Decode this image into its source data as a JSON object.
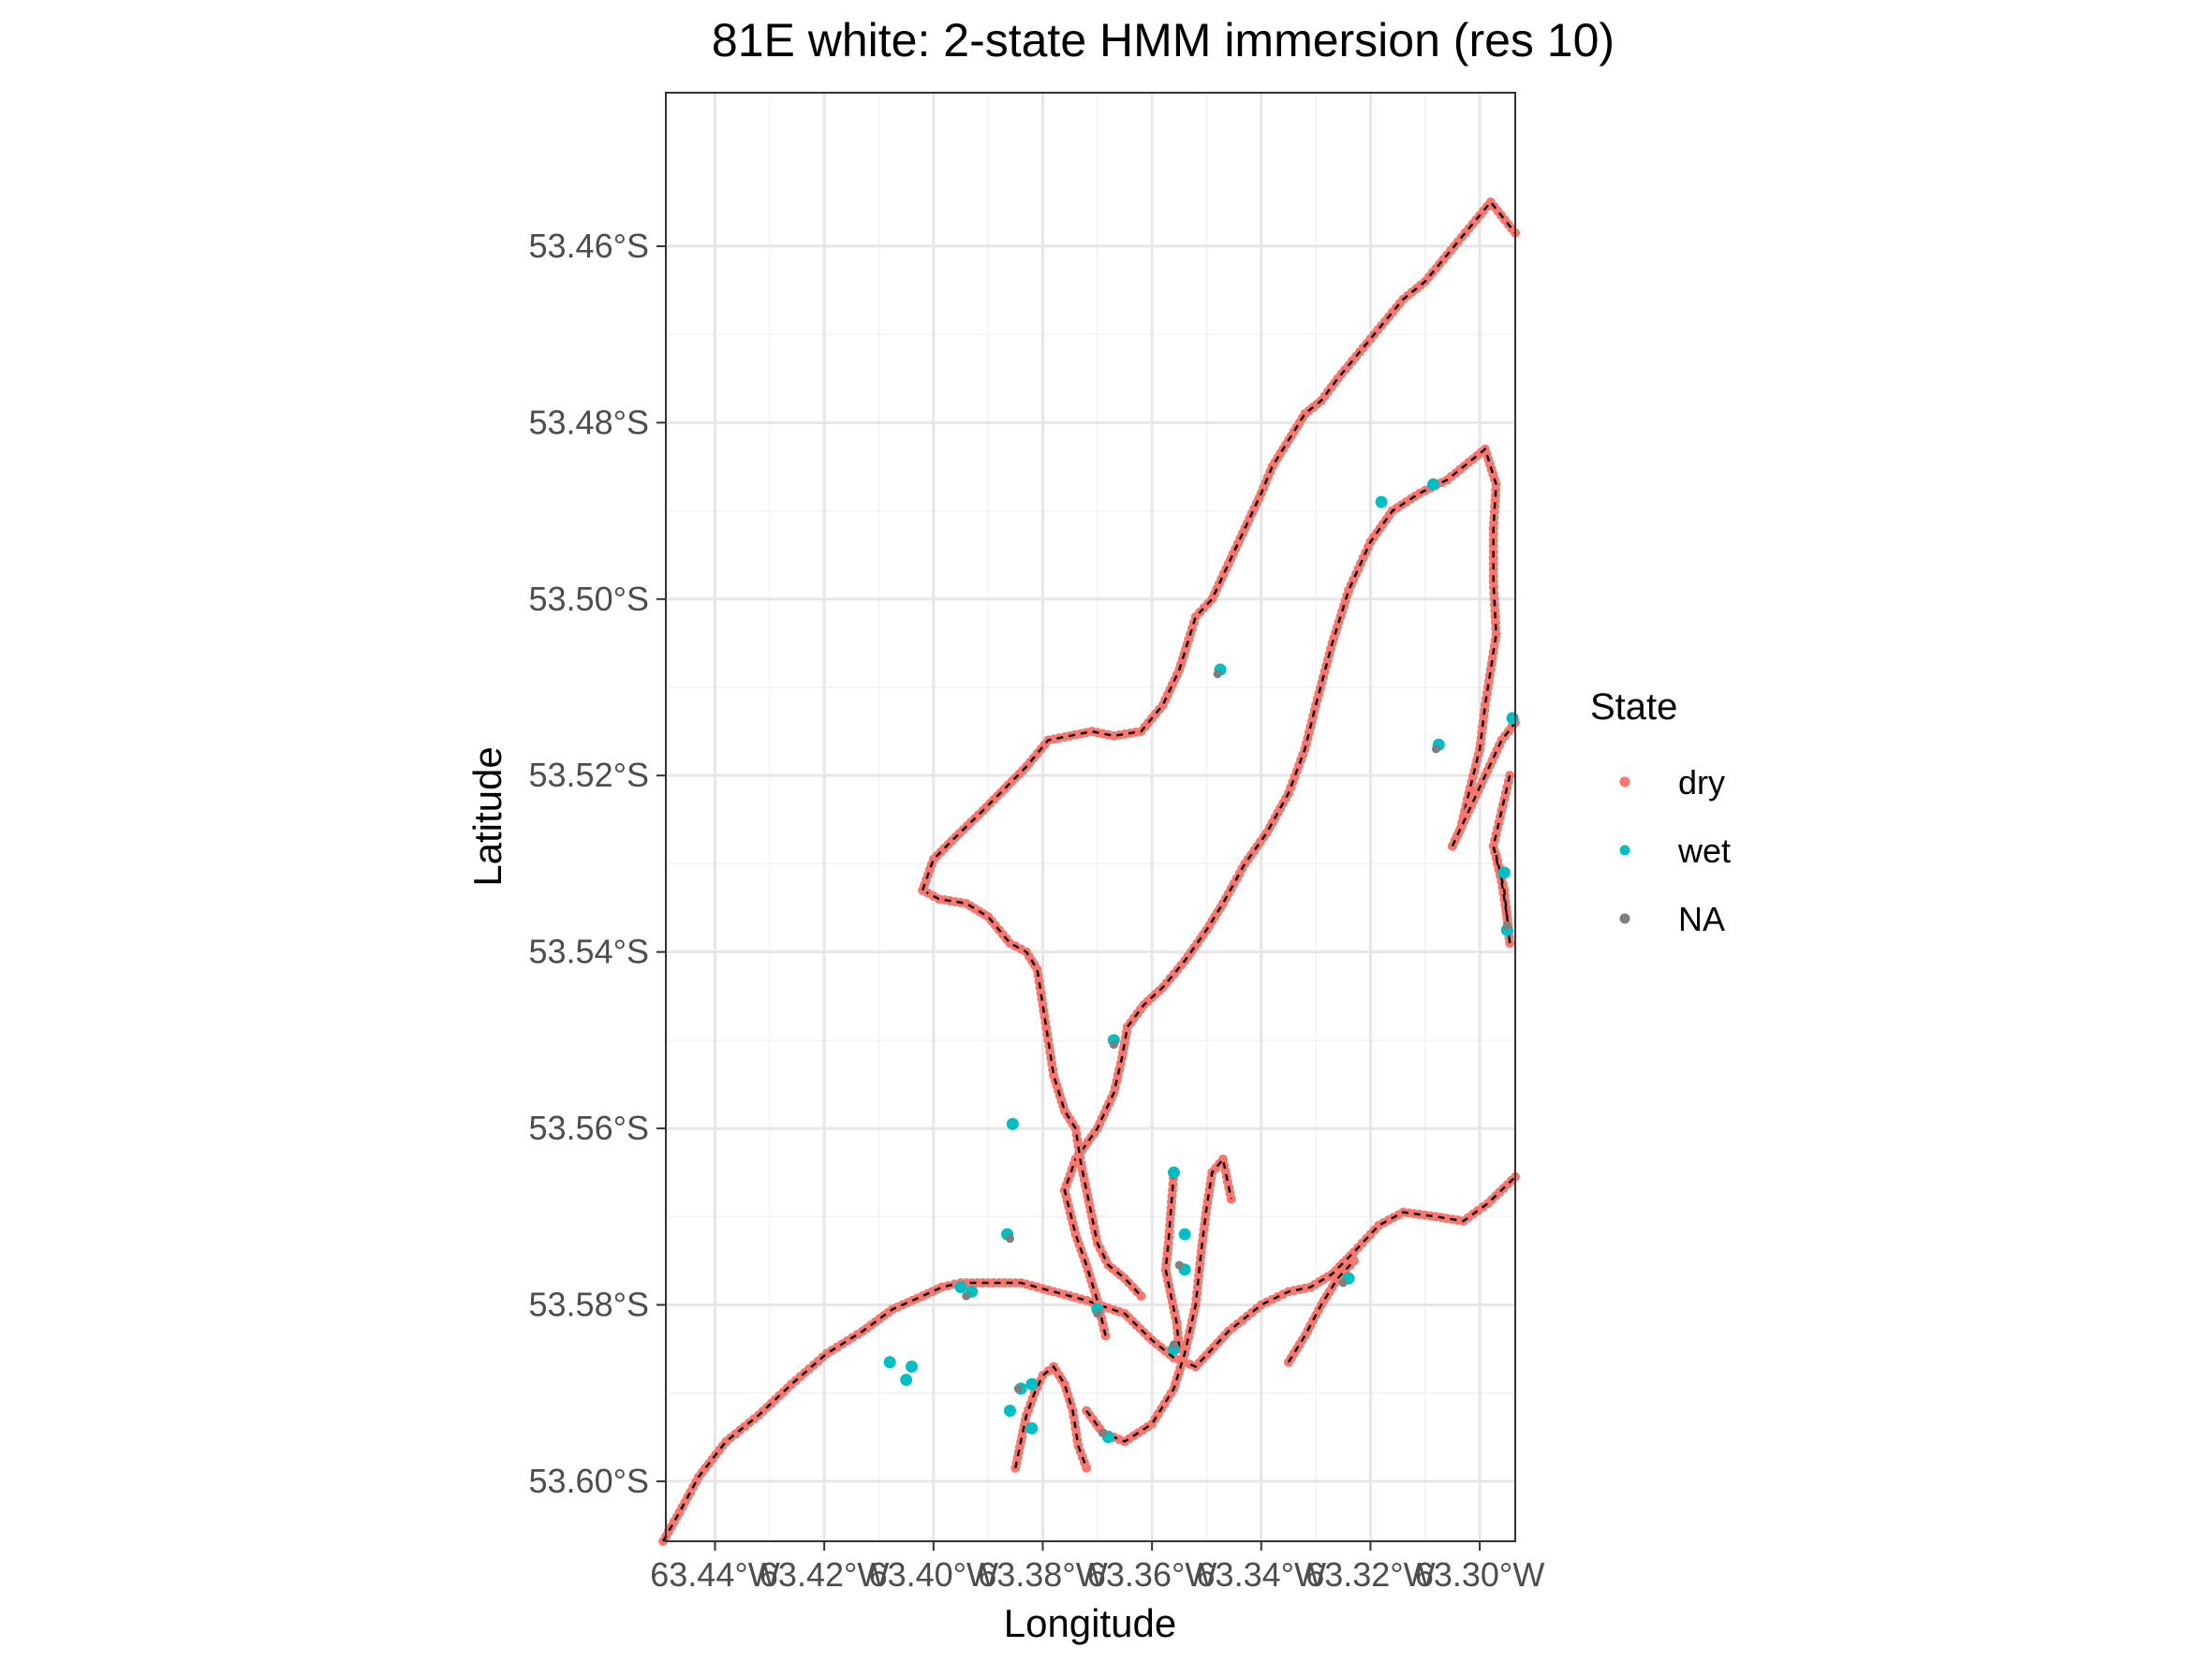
{
  "chart_data": {
    "type": "scatter",
    "title": "81E white: 2-state HMM immersion (res 10)",
    "xlabel": "Longitude",
    "ylabel": "Latitude",
    "xlim": [
      -63.449,
      -63.2935
    ],
    "ylim": [
      -53.6068,
      -53.4426
    ],
    "x_ticks": [
      -63.44,
      -63.42,
      -63.4,
      -63.38,
      -63.36,
      -63.34,
      -63.32,
      -63.3
    ],
    "x_tick_labels": [
      "63.44°W",
      "63.42°W",
      "63.40°W",
      "63.38°W",
      "63.36°W",
      "63.34°W",
      "63.32°W",
      "63.30°W"
    ],
    "y_ticks": [
      -53.46,
      -53.48,
      -53.5,
      -53.52,
      -53.54,
      -53.56,
      -53.58,
      -53.6
    ],
    "y_tick_labels": [
      "53.46°S",
      "53.48°S",
      "53.50°S",
      "53.52°S",
      "53.54°S",
      "53.56°S",
      "53.58°S",
      "53.60°S"
    ],
    "grid": true,
    "legend": {
      "title": "State",
      "position": "right",
      "entries": [
        {
          "label": "dry",
          "color": "#F8766D"
        },
        {
          "label": "wet",
          "color": "#00BFC4"
        },
        {
          "label": "NA",
          "color": "#7F7F7F"
        }
      ]
    },
    "track_line": {
      "style": "dashed",
      "color": "#111111"
    },
    "tracks": [
      {
        "state": "dry",
        "points": [
          [
            -63.4495,
            -53.6068
          ],
          [
            -63.4465,
            -53.6035
          ],
          [
            -63.443,
            -53.5995
          ],
          [
            -63.438,
            -53.5955
          ],
          [
            -63.432,
            -53.5925
          ],
          [
            -63.426,
            -53.589
          ],
          [
            -63.4195,
            -53.5855
          ],
          [
            -63.413,
            -53.583
          ],
          [
            -63.4075,
            -53.5805
          ],
          [
            -63.402,
            -53.579
          ],
          [
            -63.3985,
            -53.578
          ],
          [
            -63.395,
            -53.5775
          ],
          [
            -63.39,
            -53.5775
          ],
          [
            -63.384,
            -53.5775
          ],
          [
            -63.378,
            -53.5785
          ],
          [
            -63.372,
            -53.5795
          ],
          [
            -63.365,
            -53.581
          ],
          [
            -63.36,
            -53.584
          ],
          [
            -63.356,
            -53.586
          ],
          [
            -63.352,
            -53.587
          ],
          [
            -63.346,
            -53.583
          ],
          [
            -63.34,
            -53.58
          ],
          [
            -63.335,
            -53.5785
          ],
          [
            -63.331,
            -53.578
          ],
          [
            -63.327,
            -53.5765
          ],
          [
            -63.323,
            -53.574
          ],
          [
            -63.3185,
            -53.571
          ],
          [
            -63.314,
            -53.5695
          ],
          [
            -63.308,
            -53.57
          ],
          [
            -63.303,
            -53.5705
          ],
          [
            -63.2985,
            -53.5685
          ],
          [
            -63.2935,
            -53.5655
          ]
        ]
      },
      {
        "state": "dry",
        "points": [
          [
            -63.3685,
            -53.5835
          ],
          [
            -63.37,
            -53.5795
          ],
          [
            -63.372,
            -53.5755
          ],
          [
            -63.374,
            -53.572
          ],
          [
            -63.376,
            -53.567
          ],
          [
            -63.374,
            -53.5635
          ],
          [
            -63.37,
            -53.56
          ],
          [
            -63.367,
            -53.556
          ],
          [
            -63.3655,
            -53.552
          ],
          [
            -63.3645,
            -53.5485
          ],
          [
            -63.3615,
            -53.546
          ],
          [
            -63.358,
            -53.544
          ],
          [
            -63.354,
            -53.541
          ],
          [
            -63.35,
            -53.5375
          ],
          [
            -63.347,
            -53.5345
          ],
          [
            -63.343,
            -53.53
          ],
          [
            -63.339,
            -53.5265
          ],
          [
            -63.335,
            -53.522
          ],
          [
            -63.332,
            -53.517
          ],
          [
            -63.33,
            -53.512
          ],
          [
            -63.327,
            -53.505
          ],
          [
            -63.324,
            -53.499
          ],
          [
            -63.32,
            -53.4935
          ],
          [
            -63.316,
            -53.49
          ],
          [
            -63.311,
            -53.488
          ],
          [
            -63.306,
            -53.4865
          ],
          [
            -63.302,
            -53.4845
          ],
          [
            -63.299,
            -53.483
          ],
          [
            -63.297,
            -53.487
          ],
          [
            -63.2975,
            -53.492
          ],
          [
            -63.2975,
            -53.498
          ],
          [
            -63.297,
            -53.504
          ],
          [
            -63.298,
            -53.508
          ],
          [
            -63.299,
            -53.512
          ],
          [
            -63.3,
            -53.517
          ],
          [
            -63.302,
            -53.522
          ],
          [
            -63.3035,
            -53.526
          ],
          [
            -63.305,
            -53.528
          ]
        ]
      },
      {
        "state": "dry",
        "points": [
          [
            -63.372,
            -53.592
          ],
          [
            -63.369,
            -53.5945
          ],
          [
            -63.365,
            -53.5955
          ],
          [
            -63.36,
            -53.5935
          ],
          [
            -63.356,
            -53.5895
          ],
          [
            -63.354,
            -53.5855
          ],
          [
            -63.352,
            -53.58
          ],
          [
            -63.351,
            -53.574
          ],
          [
            -63.35,
            -53.569
          ],
          [
            -63.349,
            -53.565
          ],
          [
            -63.347,
            -53.5635
          ],
          [
            -63.3455,
            -53.568
          ]
        ]
      },
      {
        "state": "dry",
        "points": [
          [
            -63.402,
            -53.533
          ],
          [
            -63.399,
            -53.534
          ],
          [
            -63.394,
            -53.5345
          ],
          [
            -63.39,
            -53.536
          ],
          [
            -63.386,
            -53.539
          ],
          [
            -63.383,
            -53.54
          ],
          [
            -63.381,
            -53.542
          ],
          [
            -63.38,
            -53.546
          ],
          [
            -63.379,
            -53.55
          ],
          [
            -63.378,
            -53.554
          ],
          [
            -63.376,
            -53.558
          ],
          [
            -63.374,
            -53.56
          ],
          [
            -63.373,
            -53.564
          ],
          [
            -63.372,
            -53.567
          ],
          [
            -63.371,
            -53.57
          ],
          [
            -63.37,
            -53.573
          ],
          [
            -63.368,
            -53.5755
          ],
          [
            -63.365,
            -53.577
          ],
          [
            -63.362,
            -53.579
          ]
        ]
      },
      {
        "state": "dry",
        "points": [
          [
            -63.402,
            -53.533
          ],
          [
            -63.4,
            -53.5295
          ],
          [
            -63.396,
            -53.527
          ],
          [
            -63.391,
            -53.524
          ],
          [
            -63.387,
            -53.5215
          ],
          [
            -63.383,
            -53.519
          ],
          [
            -63.379,
            -53.516
          ],
          [
            -63.375,
            -53.5155
          ],
          [
            -63.371,
            -53.515
          ],
          [
            -63.367,
            -53.5155
          ],
          [
            -63.362,
            -53.515
          ],
          [
            -63.358,
            -53.512
          ],
          [
            -63.355,
            -53.508
          ],
          [
            -63.353,
            -53.504
          ],
          [
            -63.352,
            -53.502
          ],
          [
            -63.349,
            -53.5
          ],
          [
            -63.346,
            -53.496
          ],
          [
            -63.343,
            -53.492
          ],
          [
            -63.34,
            -53.488
          ],
          [
            -63.338,
            -53.485
          ],
          [
            -63.335,
            -53.482
          ],
          [
            -63.332,
            -53.479
          ],
          [
            -63.329,
            -53.4775
          ],
          [
            -63.326,
            -53.475
          ],
          [
            -63.322,
            -53.472
          ],
          [
            -63.318,
            -53.469
          ],
          [
            -63.314,
            -53.466
          ],
          [
            -63.31,
            -53.464
          ],
          [
            -63.306,
            -53.461
          ],
          [
            -63.302,
            -53.458
          ],
          [
            -63.298,
            -53.455
          ],
          [
            -63.2935,
            -53.4585
          ]
        ]
      },
      {
        "state": "dry",
        "points": [
          [
            -63.385,
            -53.5985
          ],
          [
            -63.384,
            -53.5955
          ],
          [
            -63.383,
            -53.5925
          ],
          [
            -63.3815,
            -53.59
          ],
          [
            -63.38,
            -53.588
          ],
          [
            -63.378,
            -53.587
          ],
          [
            -63.376,
            -53.589
          ],
          [
            -63.3745,
            -53.592
          ],
          [
            -63.3735,
            -53.596
          ],
          [
            -63.372,
            -53.5985
          ]
        ]
      },
      {
        "state": "dry",
        "points": [
          [
            -63.356,
            -53.565
          ],
          [
            -63.3565,
            -53.569
          ],
          [
            -63.357,
            -53.573
          ],
          [
            -63.3575,
            -53.576
          ],
          [
            -63.3565,
            -53.579
          ],
          [
            -63.3555,
            -53.582
          ],
          [
            -63.355,
            -53.585
          ]
        ]
      },
      {
        "state": "dry",
        "points": [
          [
            -63.2945,
            -53.52
          ],
          [
            -63.296,
            -53.524
          ],
          [
            -63.2975,
            -53.528
          ],
          [
            -63.296,
            -53.532
          ],
          [
            -63.295,
            -53.536
          ],
          [
            -63.2945,
            -53.539
          ],
          [
            -63.2955,
            -53.533
          ],
          [
            -63.297,
            -53.529
          ]
        ]
      },
      {
        "state": "dry",
        "points": [
          [
            -63.335,
            -53.5865
          ],
          [
            -63.332,
            -53.5835
          ],
          [
            -63.329,
            -53.58
          ],
          [
            -63.326,
            -53.577
          ],
          [
            -63.323,
            -53.575
          ]
        ]
      },
      {
        "state": "dry",
        "points": [
          [
            -63.305,
            -53.528
          ],
          [
            -63.302,
            -53.524
          ],
          [
            -63.299,
            -53.52
          ],
          [
            -63.296,
            -53.516
          ],
          [
            -63.2935,
            -53.514
          ]
        ]
      }
    ],
    "wet_points": [
      [
        -63.3475,
        -53.508
      ],
      [
        -63.318,
        -53.489
      ],
      [
        -63.3085,
        -53.487
      ],
      [
        -63.3075,
        -53.5165
      ],
      [
        -63.294,
        -53.5135
      ],
      [
        -63.2955,
        -53.531
      ],
      [
        -63.295,
        -53.5375
      ],
      [
        -63.367,
        -53.55
      ],
      [
        -63.3855,
        -53.5595
      ],
      [
        -63.3865,
        -53.572
      ],
      [
        -63.393,
        -53.5785
      ],
      [
        -63.395,
        -53.578
      ],
      [
        -63.356,
        -53.565
      ],
      [
        -63.354,
        -53.572
      ],
      [
        -63.354,
        -53.576
      ],
      [
        -63.37,
        -53.5805
      ],
      [
        -63.408,
        -53.5865
      ],
      [
        -63.404,
        -53.587
      ],
      [
        -63.405,
        -53.5885
      ],
      [
        -63.384,
        -53.5895
      ],
      [
        -63.382,
        -53.594
      ],
      [
        -63.386,
        -53.592
      ],
      [
        -63.368,
        -53.595
      ],
      [
        -63.356,
        -53.585
      ],
      [
        -63.324,
        -53.577
      ],
      [
        -63.382,
        -53.589
      ]
    ],
    "na_points": [
      [
        -63.348,
        -53.5085
      ],
      [
        -63.308,
        -53.517
      ],
      [
        -63.367,
        -53.5505
      ],
      [
        -63.386,
        -53.5725
      ],
      [
        -63.37,
        -53.581
      ],
      [
        -63.355,
        -53.5755
      ],
      [
        -63.394,
        -53.579
      ],
      [
        -63.3845,
        -53.5895
      ],
      [
        -63.369,
        -53.5945
      ],
      [
        -63.295,
        -53.537
      ],
      [
        -63.325,
        -53.5775
      ],
      [
        -63.356,
        -53.5845
      ]
    ]
  }
}
